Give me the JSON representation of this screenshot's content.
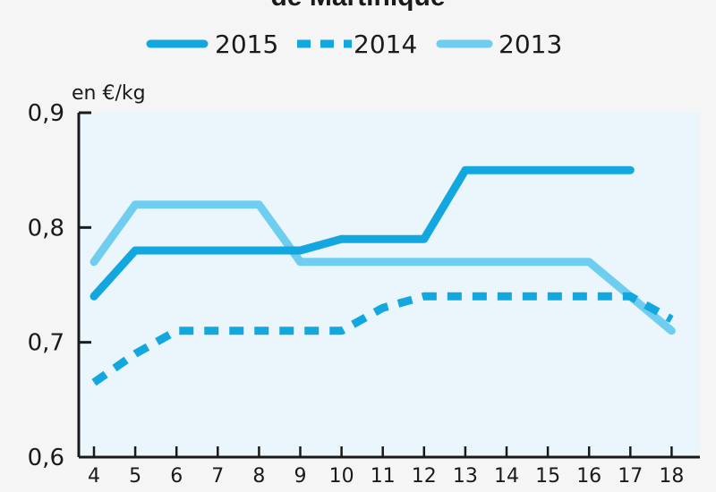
{
  "chart_data": {
    "type": "line",
    "title": "de Martinique",
    "ylabel": "en €/kg",
    "xlabel": "",
    "x": [
      4,
      5,
      6,
      7,
      8,
      9,
      10,
      11,
      12,
      13,
      14,
      15,
      16,
      17,
      18
    ],
    "ylim": [
      0.6,
      0.9
    ],
    "yticks": [
      "0,6",
      "0,7",
      "0,8",
      "0,9"
    ],
    "legend_position": "top",
    "series": [
      {
        "name": "2015",
        "style": "solid",
        "color": "#12a7df",
        "values": [
          0.74,
          0.78,
          0.78,
          0.78,
          0.78,
          0.78,
          0.79,
          0.79,
          0.79,
          0.85,
          0.85,
          0.85,
          0.85,
          0.85,
          null
        ]
      },
      {
        "name": "2014",
        "style": "dashed",
        "color": "#12a7df",
        "values": [
          0.665,
          0.69,
          0.71,
          0.71,
          0.71,
          0.71,
          0.71,
          0.73,
          0.74,
          0.74,
          0.74,
          0.74,
          0.74,
          0.74,
          0.72
        ]
      },
      {
        "name": "2013",
        "style": "solid",
        "color": "#6fcdf0",
        "values": [
          0.77,
          0.82,
          0.82,
          0.82,
          0.82,
          0.77,
          0.77,
          0.77,
          0.77,
          0.77,
          0.77,
          0.77,
          0.77,
          0.74,
          0.71
        ]
      }
    ]
  }
}
